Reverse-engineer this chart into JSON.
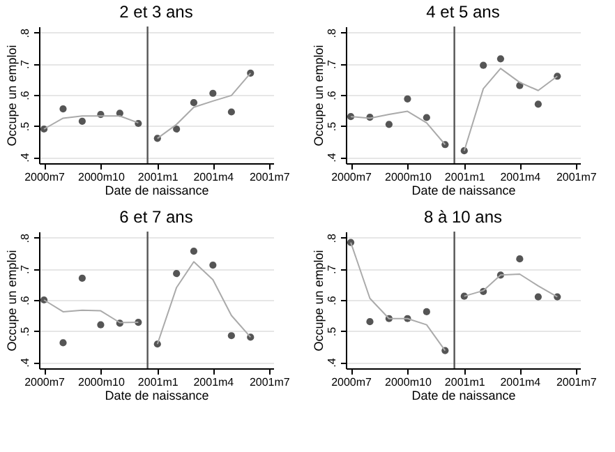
{
  "chart_data": [
    {
      "type": "scatter",
      "title": "2 et 3 ans",
      "xlabel": "Date de naissance",
      "ylabel": "Occupe un emploi",
      "x": [
        "2000-07",
        "2000-08",
        "2000-09",
        "2000-10",
        "2000-11",
        "2000-12",
        "2001-01",
        "2001-02",
        "2001-03",
        "2001-04",
        "2001-05",
        "2001-06"
      ],
      "xlim": [
        "2000-06-23",
        "2001-07-08"
      ],
      "ylim": [
        0.38,
        0.82
      ],
      "xticks": [
        {
          "value": "2000-07",
          "label": "2000m7"
        },
        {
          "value": "2000-10",
          "label": "2000m10"
        },
        {
          "value": "2001-01",
          "label": "2001m1"
        },
        {
          "value": "2001-04",
          "label": "2001m4"
        },
        {
          "value": "2001-07",
          "label": "2001m7"
        }
      ],
      "yticks": [
        {
          "value": 0.4,
          "label": ".4"
        },
        {
          "value": 0.5,
          "label": ".5"
        },
        {
          "value": 0.6,
          "label": ".6"
        },
        {
          "value": 0.7,
          "label": ".7"
        },
        {
          "value": 0.8,
          "label": ".8"
        }
      ],
      "grid": "y",
      "ref_lines": [
        {
          "axis": "x",
          "value": "2000-12-16",
          "color": "#555555"
        }
      ],
      "series": [
        {
          "color": "#555555",
          "values": [
            0.49,
            0.555,
            0.515,
            0.537,
            0.541,
            0.508,
            0.46,
            0.49,
            0.575,
            0.605,
            0.545,
            0.67
          ]
        },
        {
          "type": "line",
          "color": "#aaaaaa",
          "x": [
            "2000-07",
            "2000-08",
            "2000-09",
            "2000-10",
            "2000-11",
            "2000-12"
          ],
          "values": [
            0.49,
            0.525,
            0.532,
            0.532,
            0.532,
            0.51
          ]
        },
        {
          "type": "line",
          "color": "#aaaaaa",
          "x": [
            "2001-01",
            "2001-02",
            "2001-03",
            "2001-04",
            "2001-05",
            "2001-06"
          ],
          "values": [
            0.46,
            0.505,
            0.56,
            0.58,
            0.598,
            0.67
          ]
        }
      ]
    },
    {
      "type": "scatter",
      "title": "4 et 5 ans",
      "xlabel": "Date de naissance",
      "ylabel": "Occupe un emploi",
      "x": [
        "2000-07",
        "2000-08",
        "2000-09",
        "2000-10",
        "2000-11",
        "2000-12",
        "2001-01",
        "2001-02",
        "2001-03",
        "2001-04",
        "2001-05",
        "2001-06"
      ],
      "xlim": [
        "2000-06-23",
        "2001-07-08"
      ],
      "ylim": [
        0.38,
        0.82
      ],
      "xticks": [
        {
          "value": "2000-07",
          "label": "2000m7"
        },
        {
          "value": "2000-10",
          "label": "2000m10"
        },
        {
          "value": "2001-01",
          "label": "2001m1"
        },
        {
          "value": "2001-04",
          "label": "2001m4"
        },
        {
          "value": "2001-07",
          "label": "2001m7"
        }
      ],
      "yticks": [
        {
          "value": 0.4,
          "label": ".4"
        },
        {
          "value": 0.5,
          "label": ".5"
        },
        {
          "value": 0.6,
          "label": ".6"
        },
        {
          "value": 0.7,
          "label": ".7"
        },
        {
          "value": 0.8,
          "label": ".8"
        }
      ],
      "grid": "y",
      "ref_lines": [
        {
          "axis": "x",
          "value": "2000-12-16",
          "color": "#555555"
        }
      ],
      "series": [
        {
          "color": "#555555",
          "values": [
            0.53,
            0.528,
            0.505,
            0.587,
            0.527,
            0.44,
            0.42,
            0.695,
            0.716,
            0.63,
            0.57,
            0.66
          ]
        },
        {
          "type": "line",
          "color": "#aaaaaa",
          "x": [
            "2000-07",
            "2000-08",
            "2000-09",
            "2000-10",
            "2000-11",
            "2000-12"
          ],
          "values": [
            0.53,
            0.525,
            0.537,
            0.547,
            0.51,
            0.44
          ]
        },
        {
          "type": "line",
          "color": "#aaaaaa",
          "x": [
            "2001-01",
            "2001-02",
            "2001-03",
            "2001-04",
            "2001-05",
            "2001-06"
          ],
          "values": [
            0.42,
            0.62,
            0.685,
            0.64,
            0.614,
            0.66
          ]
        }
      ]
    },
    {
      "type": "scatter",
      "title": "6 et 7 ans",
      "xlabel": "Date de naissance",
      "ylabel": "Occupe un emploi",
      "x": [
        "2000-07",
        "2000-08",
        "2000-09",
        "2000-10",
        "2000-11",
        "2000-12",
        "2001-01",
        "2001-02",
        "2001-03",
        "2001-04",
        "2001-05",
        "2001-06"
      ],
      "xlim": [
        "2000-06-23",
        "2001-07-08"
      ],
      "ylim": [
        0.38,
        0.82
      ],
      "xticks": [
        {
          "value": "2000-07",
          "label": "2000m7"
        },
        {
          "value": "2000-10",
          "label": "2000m10"
        },
        {
          "value": "2001-01",
          "label": "2001m1"
        },
        {
          "value": "2001-04",
          "label": "2001m4"
        },
        {
          "value": "2001-07",
          "label": "2001m7"
        }
      ],
      "yticks": [
        {
          "value": 0.4,
          "label": ".4"
        },
        {
          "value": 0.5,
          "label": ".5"
        },
        {
          "value": 0.6,
          "label": ".6"
        },
        {
          "value": 0.7,
          "label": ".7"
        },
        {
          "value": 0.8,
          "label": ".8"
        }
      ],
      "grid": "y",
      "ref_lines": [
        {
          "axis": "x",
          "value": "2000-12-16",
          "color": "#555555"
        }
      ],
      "series": [
        {
          "color": "#555555",
          "values": [
            0.6,
            0.462,
            0.67,
            0.52,
            0.525,
            0.528,
            0.458,
            0.685,
            0.757,
            0.712,
            0.485,
            0.48
          ]
        },
        {
          "type": "line",
          "color": "#aaaaaa",
          "x": [
            "2000-07",
            "2000-08",
            "2000-09",
            "2000-10",
            "2000-11",
            "2000-12"
          ],
          "values": [
            0.6,
            0.562,
            0.567,
            0.565,
            0.527,
            0.528
          ]
        },
        {
          "type": "line",
          "color": "#aaaaaa",
          "x": [
            "2001-01",
            "2001-02",
            "2001-03",
            "2001-04",
            "2001-05",
            "2001-06"
          ],
          "values": [
            0.458,
            0.64,
            0.723,
            0.665,
            0.55,
            0.48
          ]
        }
      ]
    },
    {
      "type": "scatter",
      "title": "8 à 10 ans",
      "xlabel": "Date de naissance",
      "ylabel": "Occupe un emploi",
      "x": [
        "2000-07",
        "2000-08",
        "2000-09",
        "2000-10",
        "2000-11",
        "2000-12",
        "2001-01",
        "2001-02",
        "2001-03",
        "2001-04",
        "2001-05",
        "2001-06"
      ],
      "xlim": [
        "2000-06-23",
        "2001-07-08"
      ],
      "ylim": [
        0.38,
        0.82
      ],
      "xticks": [
        {
          "value": "2000-07",
          "label": "2000m7"
        },
        {
          "value": "2000-10",
          "label": "2000m10"
        },
        {
          "value": "2001-01",
          "label": "2001m1"
        },
        {
          "value": "2001-04",
          "label": "2001m4"
        },
        {
          "value": "2001-07",
          "label": "2001m7"
        }
      ],
      "yticks": [
        {
          "value": 0.4,
          "label": ".4"
        },
        {
          "value": 0.5,
          "label": ".5"
        },
        {
          "value": 0.6,
          "label": ".6"
        },
        {
          "value": 0.7,
          "label": ".7"
        },
        {
          "value": 0.8,
          "label": ".8"
        }
      ],
      "grid": "y",
      "ref_lines": [
        {
          "axis": "x",
          "value": "2000-12-16",
          "color": "#555555"
        }
      ],
      "series": [
        {
          "color": "#555555",
          "values": [
            0.785,
            0.53,
            0.54,
            0.54,
            0.562,
            0.437,
            0.612,
            0.627,
            0.68,
            0.732,
            0.61,
            0.61
          ]
        },
        {
          "type": "line",
          "color": "#aaaaaa",
          "x": [
            "2000-07",
            "2000-08",
            "2000-09",
            "2000-10",
            "2000-11",
            "2000-12"
          ],
          "values": [
            0.785,
            0.605,
            0.54,
            0.54,
            0.52,
            0.437
          ]
        },
        {
          "type": "line",
          "color": "#aaaaaa",
          "x": [
            "2001-01",
            "2001-02",
            "2001-03",
            "2001-04",
            "2001-05",
            "2001-06"
          ],
          "values": [
            0.612,
            0.63,
            0.68,
            0.683,
            0.645,
            0.61
          ]
        }
      ]
    }
  ]
}
